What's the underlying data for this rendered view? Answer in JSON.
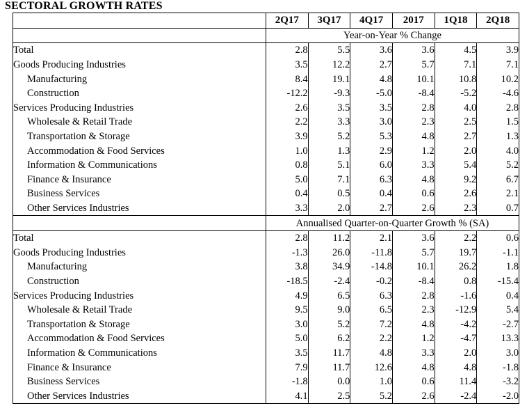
{
  "title": "SECTORAL GROWTH RATES",
  "columns": [
    "2Q17",
    "3Q17",
    "4Q17",
    "2017",
    "1Q18",
    "2Q18"
  ],
  "sections": [
    {
      "heading": "Year-on-Year % Change",
      "rows": [
        {
          "label": "Total",
          "sub": false,
          "values": [
            "2.8",
            "5.5",
            "3.6",
            "3.6",
            "4.5",
            "3.9"
          ]
        },
        {
          "label": "Goods Producing Industries",
          "sub": false,
          "values": [
            "3.5",
            "12.2",
            "2.7",
            "5.7",
            "7.1",
            "7.1"
          ]
        },
        {
          "label": "Manufacturing",
          "sub": true,
          "values": [
            "8.4",
            "19.1",
            "4.8",
            "10.1",
            "10.8",
            "10.2"
          ]
        },
        {
          "label": "Construction",
          "sub": true,
          "values": [
            "-12.2",
            "-9.3",
            "-5.0",
            "-8.4",
            "-5.2",
            "-4.6"
          ]
        },
        {
          "label": "Services Producing Industries",
          "sub": false,
          "values": [
            "2.6",
            "3.5",
            "3.5",
            "2.8",
            "4.0",
            "2.8"
          ]
        },
        {
          "label": "Wholesale & Retail Trade",
          "sub": true,
          "values": [
            "2.2",
            "3.3",
            "3.0",
            "2.3",
            "2.5",
            "1.5"
          ]
        },
        {
          "label": "Transportation & Storage",
          "sub": true,
          "values": [
            "3.9",
            "5.2",
            "5.3",
            "4.8",
            "2.7",
            "1.3"
          ]
        },
        {
          "label": "Accommodation & Food Services",
          "sub": true,
          "values": [
            "1.0",
            "1.3",
            "2.9",
            "1.2",
            "2.0",
            "4.0"
          ]
        },
        {
          "label": "Information & Communications",
          "sub": true,
          "values": [
            "0.8",
            "5.1",
            "6.0",
            "3.3",
            "5.4",
            "5.2"
          ]
        },
        {
          "label": "Finance & Insurance",
          "sub": true,
          "values": [
            "5.0",
            "7.1",
            "6.3",
            "4.8",
            "9.2",
            "6.7"
          ]
        },
        {
          "label": "Business Services",
          "sub": true,
          "values": [
            "0.4",
            "0.5",
            "0.4",
            "0.6",
            "2.6",
            "2.1"
          ]
        },
        {
          "label": "Other Services Industries",
          "sub": true,
          "values": [
            "3.3",
            "2.0",
            "2.7",
            "2.6",
            "2.3",
            "0.7"
          ]
        }
      ]
    },
    {
      "heading": "Annualised Quarter-on-Quarter Growth % (SA)",
      "rows": [
        {
          "label": "Total",
          "sub": false,
          "values": [
            "2.8",
            "11.2",
            "2.1",
            "3.6",
            "2.2",
            "0.6"
          ]
        },
        {
          "label": "Goods Producing Industries",
          "sub": false,
          "values": [
            "-1.3",
            "26.0",
            "-11.8",
            "5.7",
            "19.7",
            "-1.1"
          ]
        },
        {
          "label": "Manufacturing",
          "sub": true,
          "values": [
            "3.8",
            "34.9",
            "-14.8",
            "10.1",
            "26.2",
            "1.8"
          ]
        },
        {
          "label": "Construction",
          "sub": true,
          "values": [
            "-18.5",
            "-2.4",
            "-0.2",
            "-8.4",
            "0.8",
            "-15.4"
          ]
        },
        {
          "label": "Services Producing Industries",
          "sub": false,
          "values": [
            "4.9",
            "6.5",
            "6.3",
            "2.8",
            "-1.6",
            "0.4"
          ]
        },
        {
          "label": "Wholesale & Retail Trade",
          "sub": true,
          "values": [
            "9.5",
            "9.0",
            "6.5",
            "2.3",
            "-12.9",
            "5.4"
          ]
        },
        {
          "label": "Transportation & Storage",
          "sub": true,
          "values": [
            "3.0",
            "5.2",
            "7.2",
            "4.8",
            "-4.2",
            "-2.7"
          ]
        },
        {
          "label": "Accommodation & Food Services",
          "sub": true,
          "values": [
            "5.0",
            "6.2",
            "2.2",
            "1.2",
            "-4.7",
            "13.3"
          ]
        },
        {
          "label": "Information & Communications",
          "sub": true,
          "values": [
            "3.5",
            "11.7",
            "4.8",
            "3.3",
            "2.0",
            "3.0"
          ]
        },
        {
          "label": "Finance & Insurance",
          "sub": true,
          "values": [
            "7.9",
            "11.7",
            "12.6",
            "4.8",
            "4.8",
            "-1.8"
          ]
        },
        {
          "label": "Business Services",
          "sub": true,
          "values": [
            "-1.8",
            "0.0",
            "1.0",
            "0.6",
            "11.4",
            "-3.2"
          ]
        },
        {
          "label": "Other Services Industries",
          "sub": true,
          "values": [
            "4.1",
            "2.5",
            "5.2",
            "2.6",
            "-2.4",
            "-2.0"
          ]
        }
      ]
    }
  ]
}
